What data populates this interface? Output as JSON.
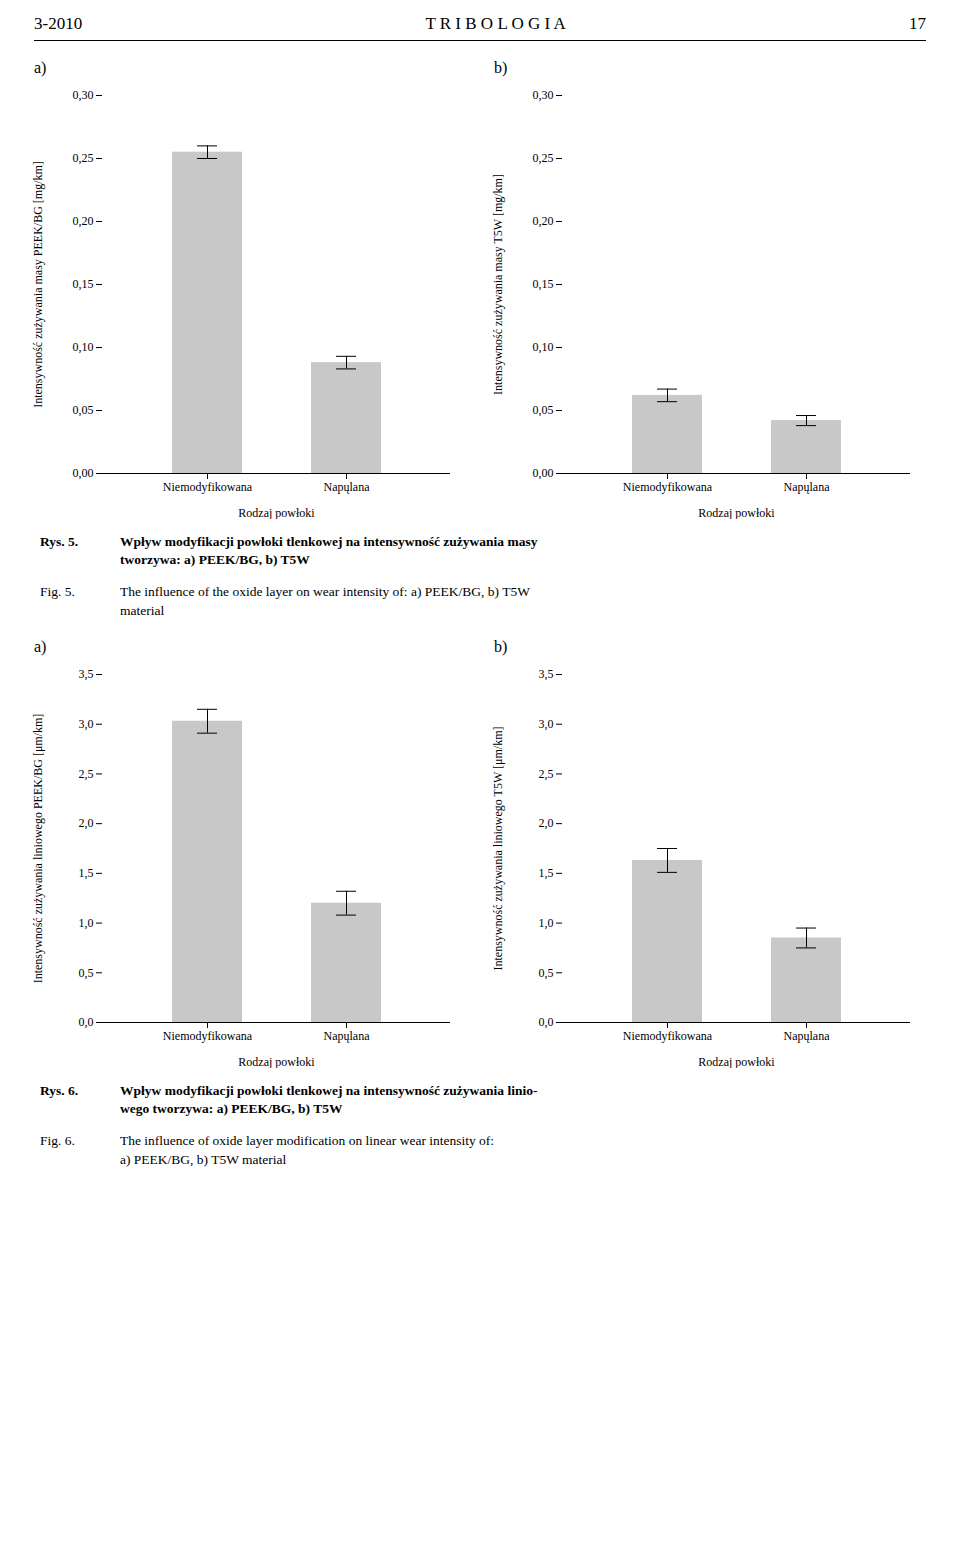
{
  "header": [
    "3-2010",
    "T R I B O L O G I A",
    "17"
  ],
  "chart_data": [
    {
      "type": "bar",
      "title": "a)",
      "ylabel": "Intensywność zużywania masy PEEK/BG [mg/km]",
      "xlabel": "Rodzaj powłoki",
      "categories": [
        "Niemodyfikowana",
        "Napųlana"
      ],
      "values": [
        0.255,
        0.088
      ],
      "errors": [
        0.005,
        0.005
      ],
      "ylim": [
        0,
        0.3
      ],
      "yticks": [
        {
          "value": 0.0,
          "label": "0,00"
        },
        {
          "value": 0.05,
          "label": "0,05"
        },
        {
          "value": 0.1,
          "label": "0,10"
        },
        {
          "value": 0.15,
          "label": "0,15"
        },
        {
          "value": 0.2,
          "label": "0,20"
        },
        {
          "value": 0.25,
          "label": "0,25"
        },
        {
          "value": 0.3,
          "label": "0,30"
        }
      ],
      "color": "#c8c8c8",
      "grid": false
    },
    {
      "type": "bar",
      "title": "b)",
      "ylabel": "Intensywność zużywania masy T5W [mg/km]",
      "xlabel": "Rodzaj powłoki",
      "categories": [
        "Niemodyfikowana",
        "Napųlana"
      ],
      "values": [
        0.062,
        0.042
      ],
      "errors": [
        0.005,
        0.004
      ],
      "ylim": [
        0,
        0.3
      ],
      "yticks": [
        {
          "value": 0.0,
          "label": "0,00"
        },
        {
          "value": 0.05,
          "label": "0,05"
        },
        {
          "value": 0.1,
          "label": "0,10"
        },
        {
          "value": 0.15,
          "label": "0,15"
        },
        {
          "value": 0.2,
          "label": "0,20"
        },
        {
          "value": 0.25,
          "label": "0,25"
        },
        {
          "value": 0.3,
          "label": "0,30"
        }
      ],
      "color": "#c8c8c8",
      "grid": false
    },
    {
      "type": "bar",
      "title": "a)",
      "ylabel": "Intensywność zużywania liniowego PEEK/BG [μm/km]",
      "xlabel": "Rodzaj powłoki",
      "categories": [
        "Niemodyfikowana",
        "Napųlana"
      ],
      "values": [
        3.03,
        1.2
      ],
      "errors": [
        0.12,
        0.12
      ],
      "ylim": [
        0,
        3.5
      ],
      "yticks": [
        {
          "value": 0.0,
          "label": "0,0"
        },
        {
          "value": 0.5,
          "label": "0,5"
        },
        {
          "value": 1.0,
          "label": "1,0"
        },
        {
          "value": 1.5,
          "label": "1,5"
        },
        {
          "value": 2.0,
          "label": "2,0"
        },
        {
          "value": 2.5,
          "label": "2,5"
        },
        {
          "value": 3.0,
          "label": "3,0"
        },
        {
          "value": 3.5,
          "label": "3,5"
        }
      ],
      "color": "#c8c8c8",
      "grid": false
    },
    {
      "type": "bar",
      "title": "b)",
      "ylabel": "Intensywność zużywania liniowego T5W [μm/km]",
      "xlabel": "Rodzaj powłoki",
      "categories": [
        "Niemodyfikowana",
        "Napųlana"
      ],
      "values": [
        1.63,
        0.85
      ],
      "errors": [
        0.12,
        0.1
      ],
      "ylim": [
        0,
        3.5
      ],
      "yticks": [
        {
          "value": 0.0,
          "label": "0,0"
        },
        {
          "value": 0.5,
          "label": "0,5"
        },
        {
          "value": 1.0,
          "label": "1,0"
        },
        {
          "value": 1.5,
          "label": "1,5"
        },
        {
          "value": 2.0,
          "label": "2,0"
        },
        {
          "value": 2.5,
          "label": "2,5"
        },
        {
          "value": 3.0,
          "label": "3,0"
        },
        {
          "value": 3.5,
          "label": "3,5"
        }
      ],
      "color": "#c8c8c8",
      "grid": false
    }
  ],
  "captions": [
    [
      {
        "label": "Rys. 5.",
        "text": "Wpływ modyfikacji powłoki tlenkowej na intensywność zużywania masy\ntworzywa: a) PEEK/BG, b) T5W"
      },
      {
        "label": "Fig. 5.",
        "text": "The influence of the oxide layer on wear intensity of: a) PEEK/BG, b) T5W\nmaterial"
      }
    ],
    [
      {
        "label": "Rys. 6.",
        "text": "Wpływ modyfikacji powłoki tlenkowej na intensywność zużywania linio-\nwego tworzywa: a) PEEK/BG, b) T5W"
      },
      {
        "label": "Fig. 6.",
        "text": "The influence of oxide layer modification on linear wear intensity of:\na) PEEK/BG, b) T5W material"
      }
    ]
  ]
}
